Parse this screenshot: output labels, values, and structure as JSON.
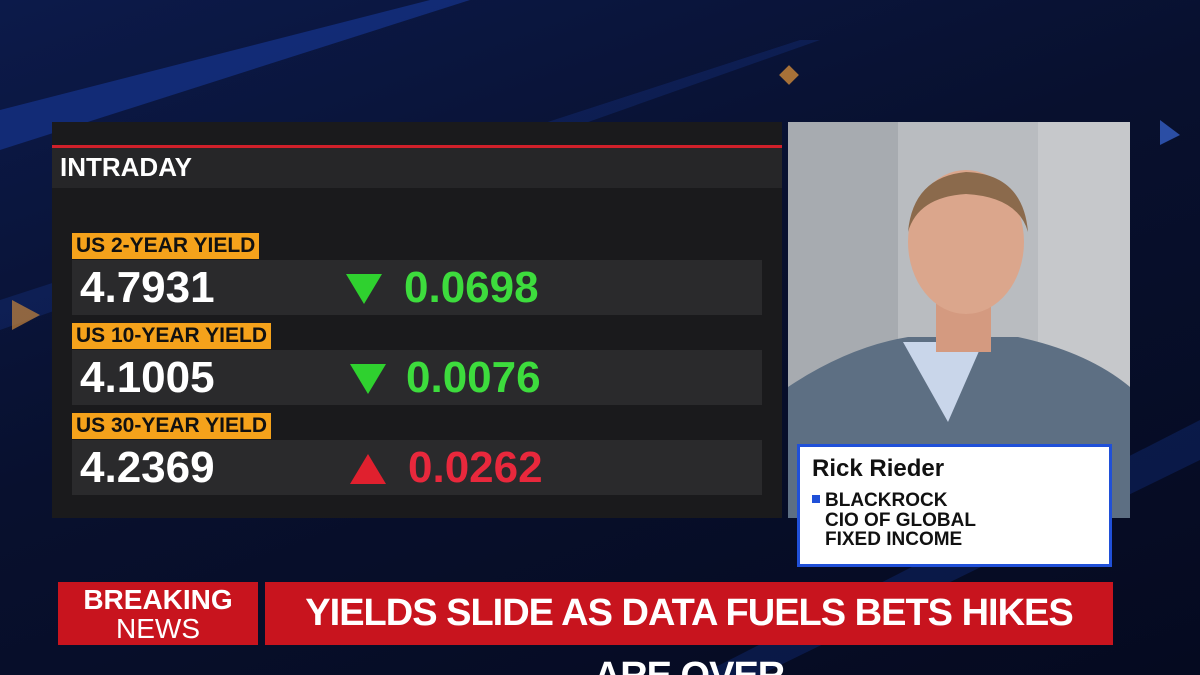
{
  "panel": {
    "title": "INTRADAY",
    "rows": [
      {
        "label": "US 2-YEAR YIELD",
        "value": 4.7931,
        "change": 0.0698
      },
      {
        "label": "US 10-YEAR YIELD",
        "value": 4.1005,
        "change": 0.0076
      },
      {
        "label": "US 30-YEAR YIELD",
        "value": 4.2369,
        "change": 0.0262
      }
    ]
  },
  "guest": {
    "name": "Rick Rieder",
    "affiliation": "BLACKROCK",
    "role": "CIO OF GLOBAL FIXED INCOME"
  },
  "ticker": {
    "badge_line1": "BREAKING",
    "badge_line2": "NEWS",
    "headline": "YIELDS SLIDE AS DATA FUELS BETS HIKES ARE OVER"
  }
}
